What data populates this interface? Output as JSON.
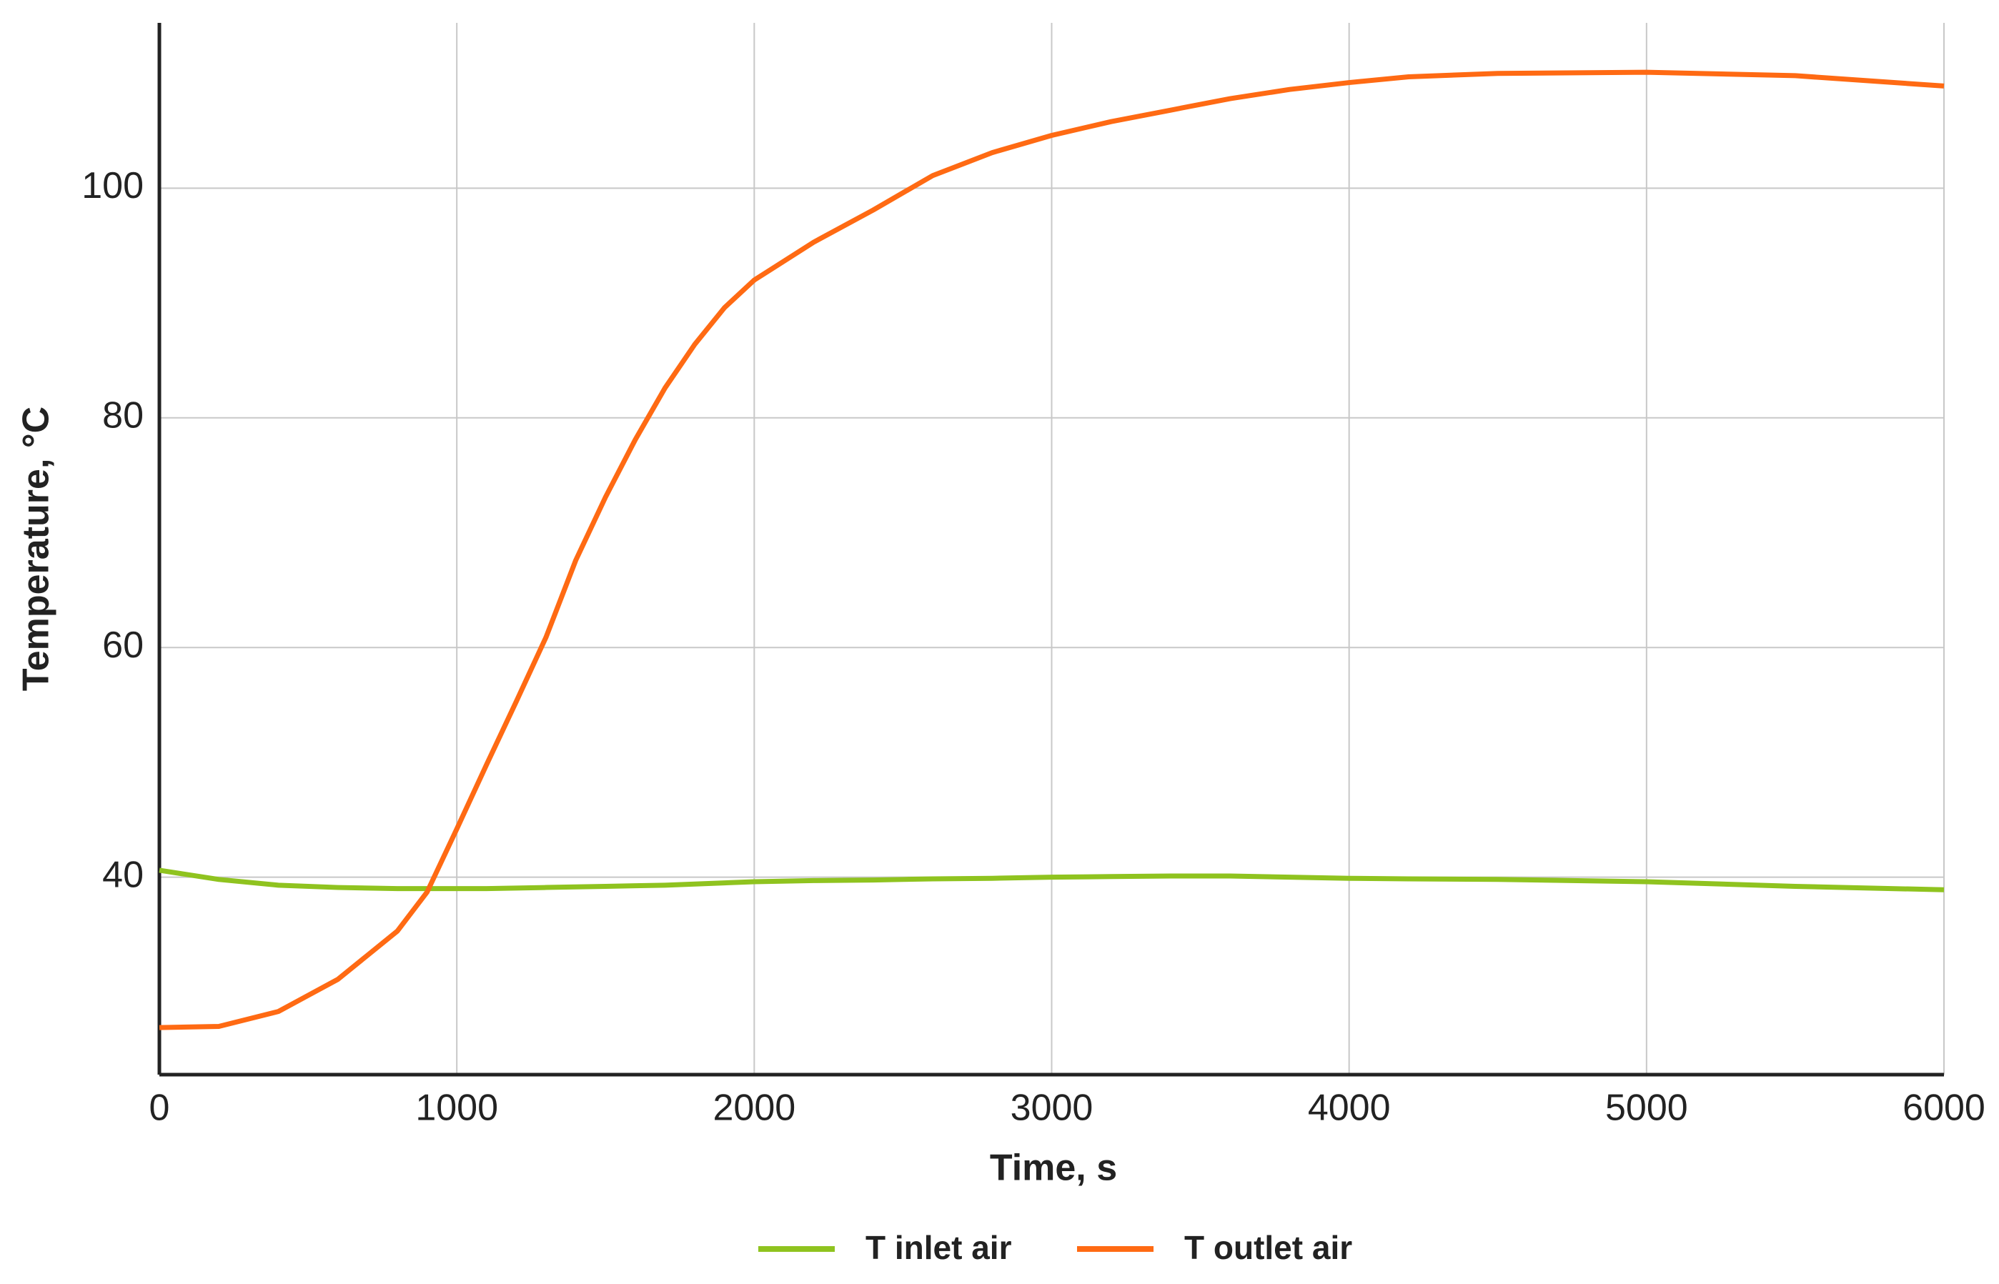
{
  "chart_data": {
    "type": "line",
    "x_label": "Time, s",
    "y_label": "Temperature, °C",
    "x": [
      0,
      200,
      400,
      600,
      800,
      900,
      1000,
      1100,
      1200,
      1300,
      1400,
      1500,
      1600,
      1700,
      1800,
      1900,
      2000,
      2200,
      2400,
      2500,
      2600,
      2800,
      3000,
      3200,
      3400,
      3500,
      3600,
      3800,
      4000,
      4200,
      4500,
      5000,
      5500,
      6000
    ],
    "series": [
      {
        "name": "T inlet air",
        "color": "#8fc31f",
        "values": [
          40.6,
          39.8,
          39.3,
          39.1,
          39.0,
          39.0,
          39.0,
          39.0,
          39.05,
          39.1,
          39.15,
          39.2,
          39.25,
          39.3,
          39.4,
          39.5,
          39.6,
          39.7,
          39.75,
          39.8,
          39.85,
          39.9,
          40.0,
          40.05,
          40.1,
          40.1,
          40.1,
          40.0,
          39.9,
          39.85,
          39.8,
          39.6,
          39.2,
          38.9
        ]
      },
      {
        "name": "T outlet air",
        "color": "#ff6a13",
        "values": [
          26.9,
          27.0,
          28.3,
          31.1,
          35.3,
          38.7,
          44.2,
          49.8,
          55.3,
          60.9,
          67.6,
          73.1,
          78.1,
          82.6,
          86.4,
          89.6,
          92.0,
          95.3,
          98.1,
          99.6,
          101.1,
          103.1,
          104.6,
          105.8,
          106.8,
          107.3,
          107.8,
          108.6,
          109.2,
          109.7,
          110.0,
          110.1,
          109.8,
          108.9
        ]
      }
    ],
    "xlim": [
      0,
      6000
    ],
    "xticks": [
      0,
      1000,
      2000,
      3000,
      4000,
      5000,
      6000
    ],
    "ylim": [
      22.8,
      114.4
    ],
    "yticks": [
      40,
      60,
      80,
      100
    ],
    "grid": true
  }
}
